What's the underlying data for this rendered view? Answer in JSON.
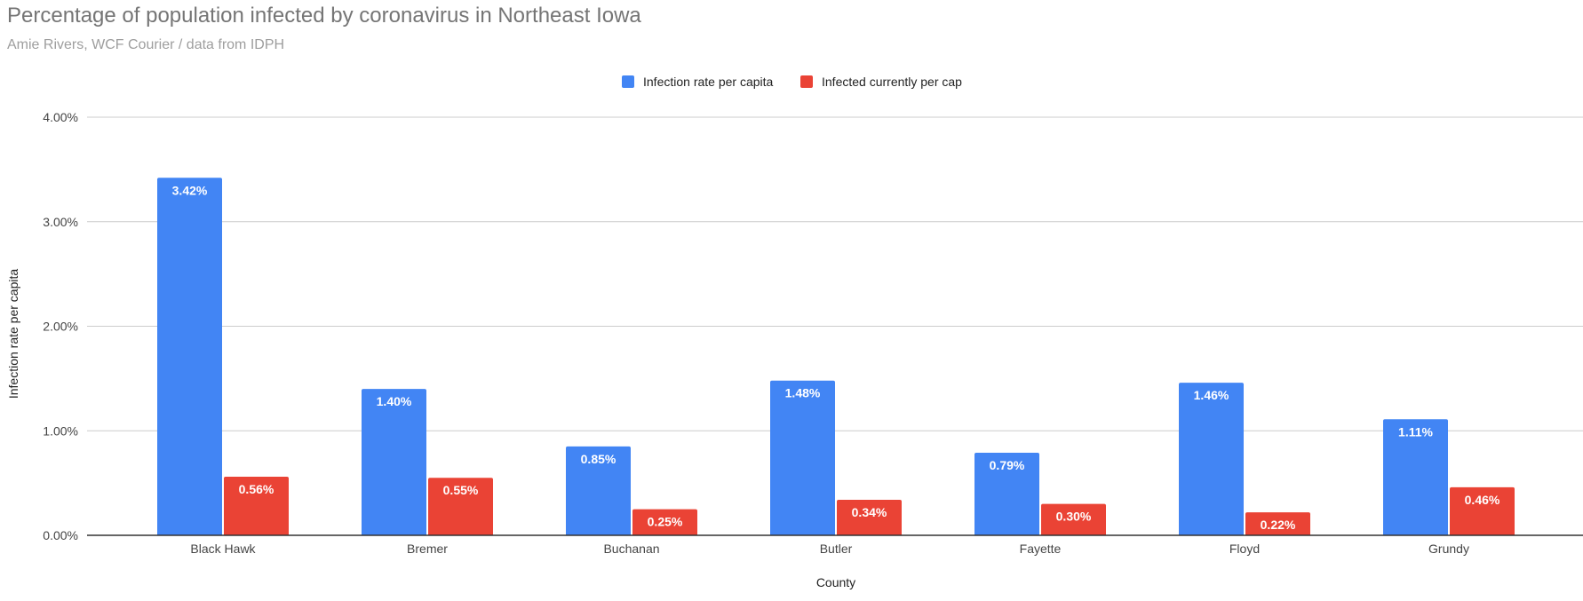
{
  "chart_data": {
    "type": "bar",
    "title": "Percentage of population infected by coronavirus in Northeast Iowa",
    "subtitle": "Amie Rivers, WCF Courier / data from IDPH",
    "xlabel": "County",
    "ylabel": "Infection rate per capita",
    "ylim": [
      0,
      4
    ],
    "y_unit": "%",
    "y_ticks": [
      "0.00%",
      "1.00%",
      "2.00%",
      "3.00%",
      "4.00%"
    ],
    "grid": true,
    "legend_position": "top",
    "categories": [
      "Black Hawk",
      "Bremer",
      "Buchanan",
      "Butler",
      "Fayette",
      "Floyd",
      "Grundy"
    ],
    "series": [
      {
        "name": "Infection rate per capita",
        "color": "#4285f4",
        "values": [
          3.42,
          1.4,
          0.85,
          1.48,
          0.79,
          1.46,
          1.11
        ],
        "labels": [
          "3.42%",
          "1.40%",
          "0.85%",
          "1.48%",
          "0.79%",
          "1.46%",
          "1.11%"
        ]
      },
      {
        "name": "Infected currently per cap",
        "color": "#ea4335",
        "values": [
          0.56,
          0.55,
          0.25,
          0.34,
          0.3,
          0.22,
          0.46
        ],
        "labels": [
          "0.56%",
          "0.55%",
          "0.25%",
          "0.34%",
          "0.30%",
          "0.22%",
          "0.46%"
        ]
      }
    ]
  }
}
